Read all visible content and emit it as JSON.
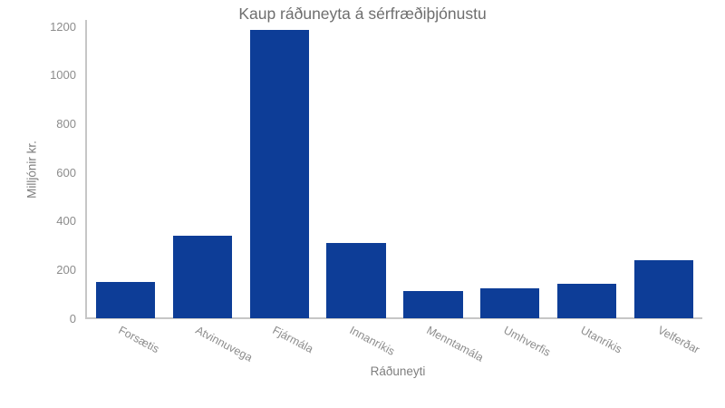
{
  "chart_data": {
    "type": "bar",
    "title": "Kaup ráðuneyta á sérfræðiþjónustu",
    "xlabel": "Ráðuneyti",
    "ylabel": "Milljónir kr.",
    "categories": [
      "Forsætis",
      "Atvinnuvega",
      "Fjármála",
      "Innanríkis",
      "Menntamála",
      "Umhverfis",
      "Utanríkis",
      "Velferðar"
    ],
    "values": [
      150,
      340,
      1185,
      310,
      113,
      124,
      140,
      240
    ],
    "ylim": [
      0,
      1200
    ],
    "yticks": [
      0,
      200,
      400,
      600,
      800,
      1000,
      1200
    ],
    "grid": false,
    "legend": false,
    "xtick_angle_deg": -28,
    "bar_color": "#0d3d97",
    "axis_line_color": "#c6c6c6",
    "tick_label_color": "#8c8c8c",
    "title_color": "#6e6e6e"
  }
}
